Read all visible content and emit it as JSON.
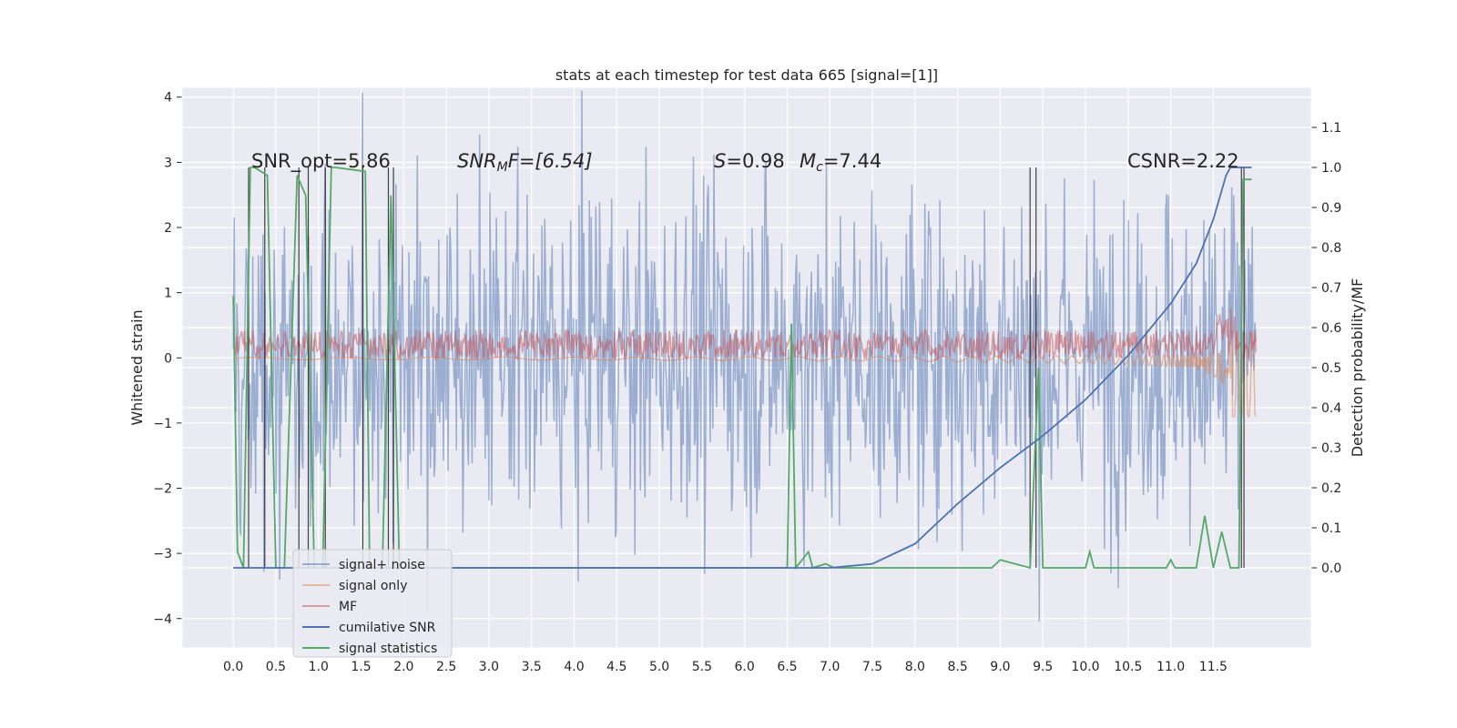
{
  "chart_data": {
    "type": "line",
    "title": "stats at each timestep for test data 665 [signal=[1]]",
    "xlabel": "",
    "ylabel": "Whitened strain",
    "y2label": "Detection probability/MF",
    "xlim": [
      -0.6,
      12.65
    ],
    "ylim": [
      -4.45,
      4.15
    ],
    "y2lim": [
      -0.2,
      1.2
    ],
    "x_ticks": [
      "0.0",
      "0.5",
      "1.0",
      "1.5",
      "2.0",
      "2.5",
      "3.0",
      "3.5",
      "4.0",
      "4.5",
      "5.0",
      "5.5",
      "6.0",
      "6.5",
      "7.0",
      "7.5",
      "8.0",
      "8.5",
      "9.0",
      "9.5",
      "10.0",
      "10.5",
      "11.0",
      "11.5"
    ],
    "y_ticks": [
      "4",
      "3",
      "2",
      "1",
      "0",
      "−1",
      "−2",
      "−3",
      "−4"
    ],
    "y2_ticks": [
      "1.1",
      "1.0",
      "0.9",
      "0.8",
      "0.7",
      "0.6",
      "0.5",
      "0.4",
      "0.3",
      "0.2",
      "0.1",
      "0.0"
    ],
    "grid": true,
    "legend_position": "lower-left",
    "series": [
      {
        "name": "signal+ noise",
        "color": "#4c72b0",
        "opacity": 0.5,
        "axis": "left",
        "amplitude": 1.3
      },
      {
        "name": "signal only",
        "color": "#dd8452",
        "opacity": 0.5,
        "axis": "left"
      },
      {
        "name": "MF",
        "color": "#c44e52",
        "opacity": 0.5,
        "axis": "left"
      },
      {
        "name": "cumilative SNR",
        "color": "#4c72b0",
        "axis": "right",
        "x": [
          0.0,
          7.0,
          7.5,
          8.0,
          8.5,
          9.0,
          9.5,
          10.0,
          10.5,
          11.0,
          11.3,
          11.5,
          11.65,
          11.7,
          11.95
        ],
        "values": [
          0.0,
          0.0,
          0.01,
          0.06,
          0.16,
          0.25,
          0.33,
          0.42,
          0.53,
          0.66,
          0.76,
          0.87,
          0.98,
          1.0,
          1.0
        ]
      },
      {
        "name": "signal statistics",
        "color": "#55a868",
        "axis": "right",
        "x": [
          0.0,
          0.05,
          0.12,
          0.2,
          0.25,
          0.4,
          0.5,
          0.6,
          0.75,
          0.85,
          0.95,
          1.05,
          1.15,
          1.2,
          1.55,
          1.6,
          1.75,
          1.85,
          1.95,
          2.0,
          6.5,
          6.55,
          6.6,
          6.75,
          6.8,
          6.95,
          7.05,
          8.9,
          9.0,
          9.35,
          9.45,
          9.5,
          10.0,
          10.05,
          10.1,
          10.95,
          11.0,
          11.05,
          11.3,
          11.4,
          11.5,
          11.6,
          11.7,
          11.8,
          11.85,
          11.95
        ],
        "values": [
          0.68,
          0.04,
          0.0,
          1.0,
          1.0,
          0.98,
          0.0,
          0.0,
          0.98,
          0.93,
          0.0,
          0.0,
          1.0,
          1.0,
          0.99,
          0.0,
          0.0,
          0.93,
          0.0,
          0.0,
          0.0,
          0.61,
          0.0,
          0.04,
          0.0,
          0.01,
          0.0,
          0.0,
          0.02,
          0.0,
          0.5,
          0.0,
          0.0,
          0.04,
          0.0,
          0.0,
          0.02,
          0.0,
          0.0,
          0.13,
          0.0,
          0.09,
          0.0,
          0.0,
          0.97,
          0.97
        ]
      }
    ],
    "annotations": [
      {
        "id": "snr-opt",
        "text": "SNR_opt=5.86"
      },
      {
        "id": "snr-mf",
        "prefix": "SNR",
        "subscript": "M",
        "suffix": "F=[6.54]"
      },
      {
        "id": "s-value",
        "prefix": "S",
        "suffix": "=0.98"
      },
      {
        "id": "chirp-mass",
        "prefix": "M",
        "subscript": "c",
        "suffix": "=7.44"
      },
      {
        "id": "csnr",
        "text": "CSNR=2.22"
      }
    ],
    "vertical_lines_x": [
      0.18,
      0.37,
      0.77,
      0.88,
      1.08,
      1.52,
      1.82,
      1.88,
      9.35,
      9.42,
      11.83,
      11.86
    ]
  }
}
